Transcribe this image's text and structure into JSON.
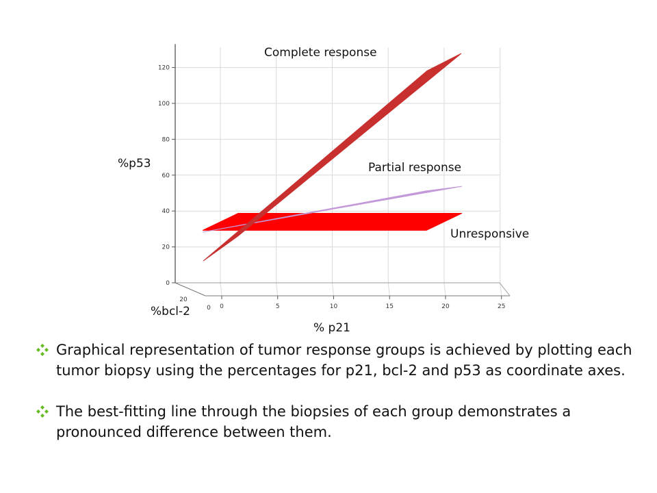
{
  "chart_data": {
    "type": "surface-3d",
    "title": "",
    "xlabel": "% p21",
    "ylabel": "%bcl-2",
    "zlabel": "%p53",
    "x_ticks": [
      "0",
      "5",
      "10",
      "15",
      "20",
      "25"
    ],
    "y_ticks": [
      "0",
      "20"
    ],
    "z_ticks": [
      "0",
      "20",
      "40",
      "60",
      "80",
      "100",
      "120"
    ],
    "xlim": [
      0,
      25
    ],
    "zlim": [
      0,
      130
    ],
    "grid": true,
    "series": [
      {
        "name": "Complete response",
        "color": "#c8302f",
        "x": [
          0,
          20
        ],
        "z_lower": [
          16,
          122
        ],
        "z_upper": [
          22,
          124
        ]
      },
      {
        "name": "Partial response",
        "color": "#c39ad9",
        "x": [
          0,
          20
        ],
        "z_lower": [
          29,
          52
        ],
        "z_upper": [
          31,
          53
        ]
      },
      {
        "name": "Unresponsive",
        "color": "#ff0000",
        "x": [
          0,
          20
        ],
        "z_lower": [
          30,
          30
        ],
        "z_upper": [
          38,
          38
        ]
      }
    ]
  },
  "bullets": [
    "Graphical representation of tumor response groups is achieved by plotting each tumor biopsy using the percentages for p21, bcl-2 and p53 as coordinate axes.",
    "The best-fitting line through the biopsies of each group demonstrates a pronounced difference between them."
  ],
  "bullet_icon": "four-diamond-star-icon",
  "bullet_icon_color": "#66bb22"
}
